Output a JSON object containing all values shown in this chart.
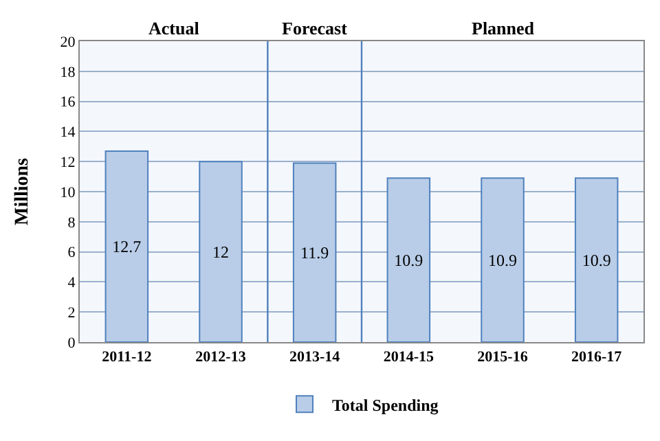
{
  "chart_data": {
    "type": "bar",
    "ylabel": "Millions",
    "categories": [
      "2011-12",
      "2012-13",
      "2013-14",
      "2014-15",
      "2015-16",
      "2016-17"
    ],
    "series": [
      {
        "name": "Total Spending",
        "color": "#b9cde8",
        "values": [
          12.7,
          12,
          11.9,
          10.9,
          10.9,
          10.9
        ]
      }
    ],
    "ylim": [
      0,
      20
    ],
    "yticks": [
      0,
      2,
      4,
      6,
      8,
      10,
      12,
      14,
      16,
      18,
      20
    ],
    "grid": "y",
    "legend": "bottom",
    "data_labels": true,
    "bands": [
      {
        "axis": "x",
        "from": "2011-12",
        "to": "2012-13",
        "label": "Actual",
        "color": "#f4f7fc"
      },
      {
        "axis": "x",
        "from": "2013-14",
        "to": "2013-14",
        "label": "Forecast",
        "color": "#f4f7fc"
      },
      {
        "axis": "x",
        "from": "2014-15",
        "to": "2016-17",
        "label": "Planned",
        "color": "#f4f7fc"
      }
    ]
  }
}
